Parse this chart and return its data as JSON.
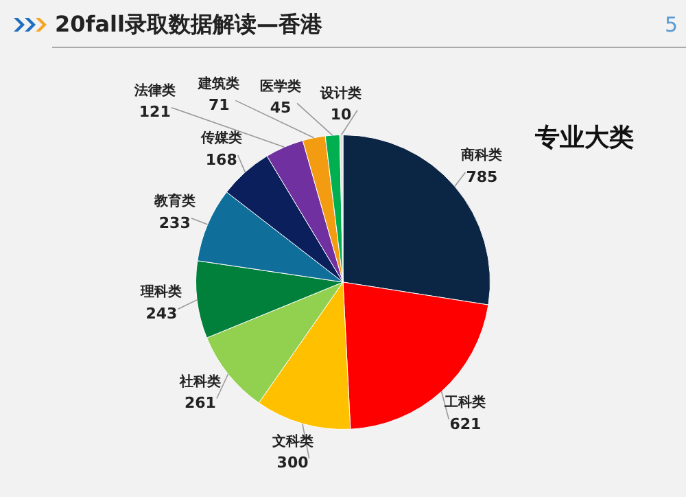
{
  "chart_data": {
    "type": "pie",
    "title": "20fall录取数据解读—香港",
    "subtitle": "专业大类",
    "annotations": [
      "5"
    ],
    "categories": [
      "商科类",
      "工科类",
      "文科类",
      "社科类",
      "理科类",
      "教育类",
      "传媒类",
      "法律类",
      "建筑类",
      "医学类",
      "设计类"
    ],
    "values": [
      785,
      621,
      300,
      261,
      243,
      233,
      168,
      121,
      71,
      45,
      10
    ],
    "colors": [
      "#0b2545",
      "#ff0000",
      "#ffc000",
      "#92d050",
      "#00803a",
      "#0f6f9a",
      "#0a1f5c",
      "#7030a0",
      "#f39c12",
      "#00b050",
      "#e0e0e0"
    ],
    "data_labels": true,
    "legend": false
  }
}
